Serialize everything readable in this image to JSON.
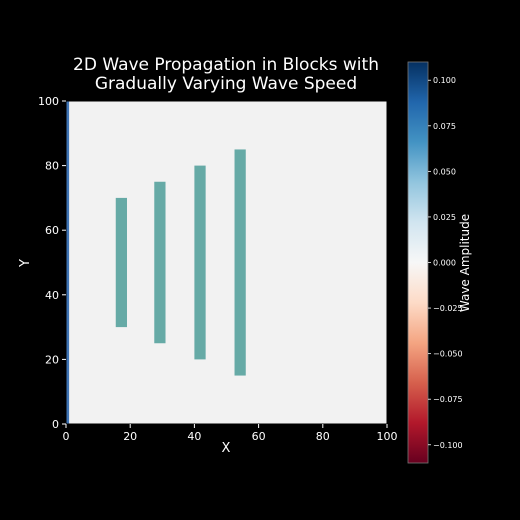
{
  "chart_data": {
    "type": "heatmap",
    "title_lines": [
      "2D Wave Propagation in Blocks with",
      "Gradually Varying Wave Speed"
    ],
    "xlabel": "X",
    "ylabel": "Y",
    "xlim": [
      0,
      100
    ],
    "ylim": [
      0,
      100
    ],
    "x_ticks": [
      0,
      20,
      40,
      60,
      80,
      100
    ],
    "y_ticks": [
      0,
      20,
      40,
      60,
      80,
      100
    ],
    "grid": false,
    "background_field_color": "#f2f2f2",
    "blocks": [
      {
        "x0": 15.5,
        "x1": 19,
        "y0": 30,
        "y1": 70
      },
      {
        "x0": 27.5,
        "x1": 31,
        "y0": 25,
        "y1": 75
      },
      {
        "x0": 40,
        "x1": 43.5,
        "y0": 20,
        "y1": 80
      },
      {
        "x0": 52.5,
        "x1": 56,
        "y0": 15,
        "y1": 85
      }
    ],
    "block_color": "#66aaa6",
    "wavefront": {
      "x": 0.5,
      "color": "#3f74b5"
    },
    "colorbar": {
      "label": "Wave Amplitude",
      "range": [
        -0.11,
        0.11
      ],
      "ticks": [
        0.1,
        0.075,
        0.05,
        0.025,
        0.0,
        -0.025,
        -0.05,
        -0.075,
        -0.1
      ],
      "tick_labels": [
        "0.100",
        "0.075",
        "0.050",
        "0.025",
        "0.000",
        "−0.025",
        "−0.050",
        "−0.075",
        "−0.100"
      ],
      "colormap": "RdBu",
      "colors": [
        "#67001f",
        "#b2182b",
        "#d6604d",
        "#f4a582",
        "#fddbc7",
        "#f7f7f7",
        "#d1e5f0",
        "#92c5de",
        "#4393c3",
        "#2166ac",
        "#053061"
      ]
    }
  }
}
